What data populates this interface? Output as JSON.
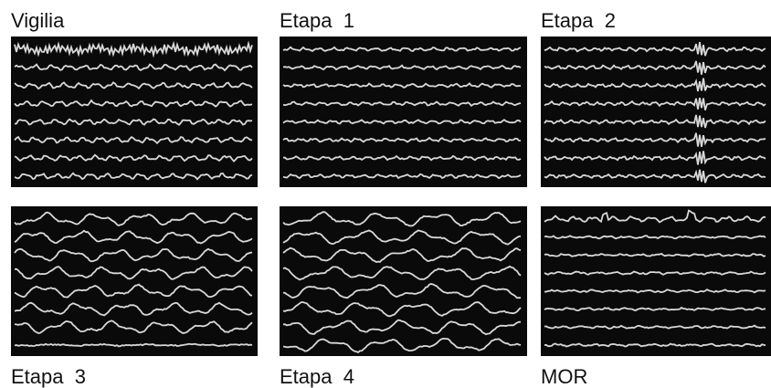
{
  "panels": [
    {
      "label": "Vigilia"
    },
    {
      "label": "Etapa  1"
    },
    {
      "label": "Etapa  2"
    },
    {
      "label": "Etapa  3"
    },
    {
      "label": "Etapa  4"
    },
    {
      "label": "MOR"
    }
  ]
}
